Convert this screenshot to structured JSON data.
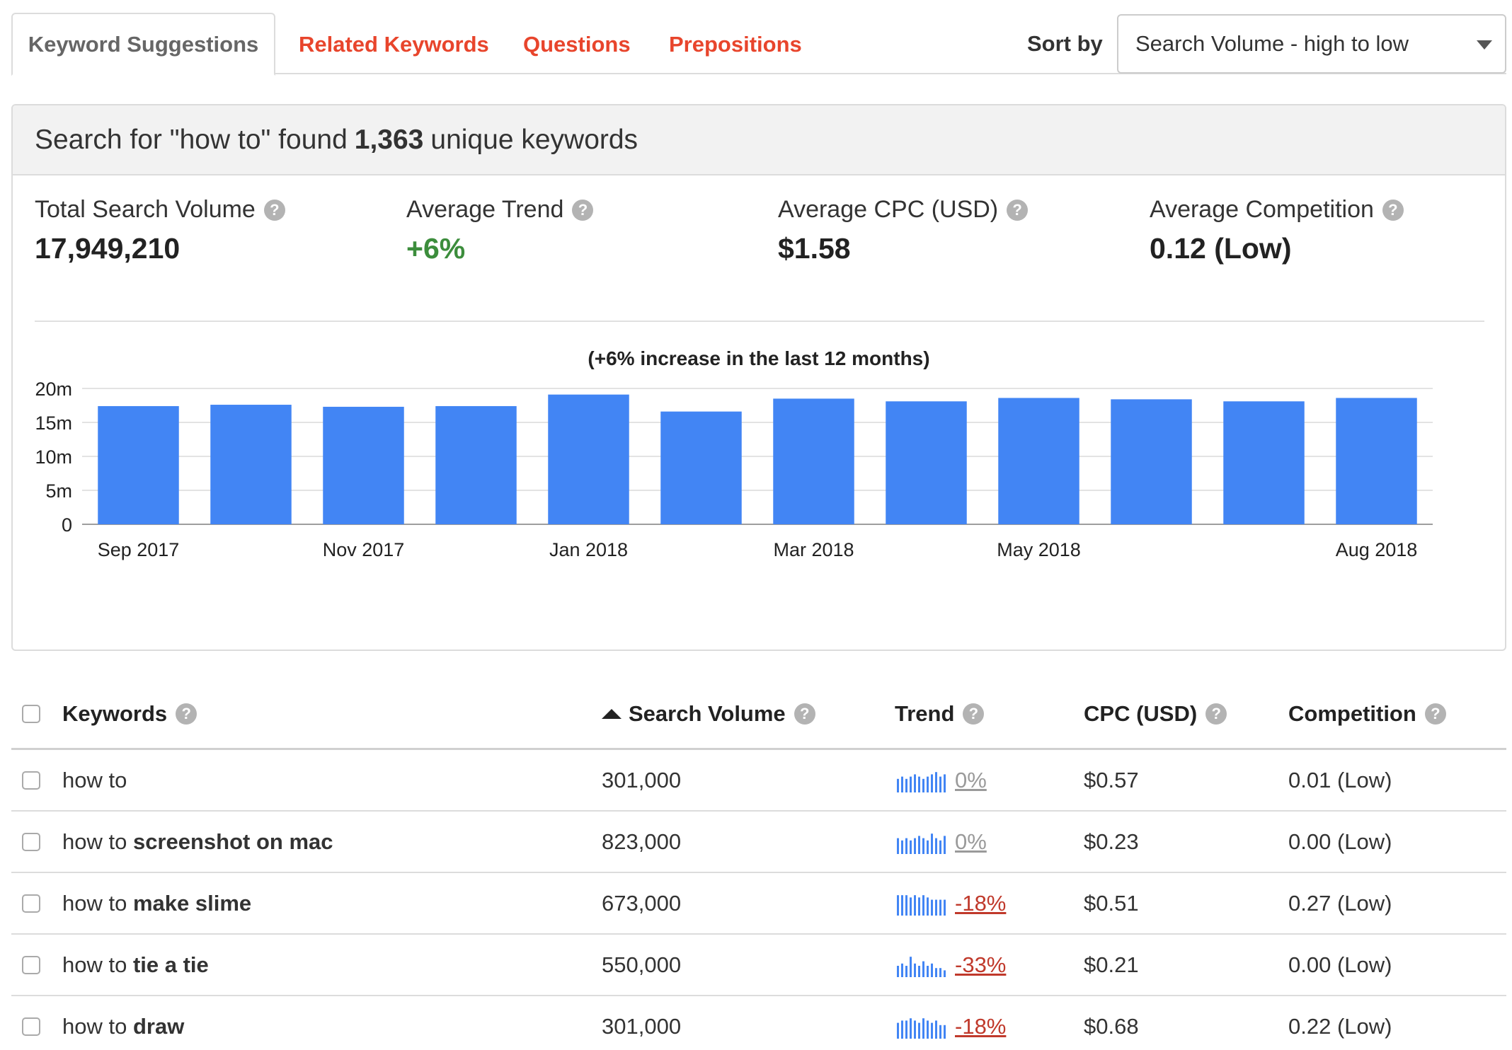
{
  "tabs": [
    {
      "label": "Keyword Suggestions",
      "active": true
    },
    {
      "label": "Related Keywords",
      "active": false
    },
    {
      "label": "Questions",
      "active": false
    },
    {
      "label": "Prepositions",
      "active": false
    }
  ],
  "sort": {
    "label": "Sort by",
    "selected": "Search Volume - high to low"
  },
  "summary": {
    "prefix": "Search for \"how to\" found",
    "count": "1,363",
    "suffix": "unique keywords"
  },
  "stats": {
    "total_volume": {
      "label": "Total Search Volume",
      "value": "17,949,210"
    },
    "avg_trend": {
      "label": "Average Trend",
      "value": "+6%"
    },
    "avg_cpc": {
      "label": "Average CPC (USD)",
      "value": "$1.58"
    },
    "avg_competition": {
      "label": "Average Competition",
      "value": "0.12 (Low)"
    }
  },
  "help_glyph": "?",
  "colors": {
    "accent": "#e8452c",
    "bar": "#4285f4",
    "positive": "#3c8d3c",
    "negative": "#c0392b"
  },
  "chart_data": {
    "type": "bar",
    "title": "(+6% increase in the last 12 months)",
    "categories": [
      "Sep 2017",
      "Oct 2017",
      "Nov 2017",
      "Dec 2017",
      "Jan 2018",
      "Feb 2018",
      "Mar 2018",
      "Apr 2018",
      "May 2018",
      "Jun 2018",
      "Jul 2018",
      "Aug 2018"
    ],
    "values": [
      17.4,
      17.6,
      17.3,
      17.4,
      19.1,
      16.6,
      18.5,
      18.1,
      18.6,
      18.4,
      18.1,
      18.6
    ],
    "x_tick_labels": [
      "Sep 2017",
      "Nov 2017",
      "Jan 2018",
      "Mar 2018",
      "May 2018",
      "Aug 2018"
    ],
    "y_ticks": [
      0,
      5,
      10,
      15,
      20
    ],
    "y_tick_labels": [
      "0",
      "5m",
      "10m",
      "15m",
      "20m"
    ],
    "ylim": [
      0,
      20
    ],
    "unit": "millions",
    "grid": true,
    "legend": "none"
  },
  "table": {
    "headers": {
      "keywords": "Keywords",
      "volume": "Search Volume",
      "trend": "Trend",
      "cpc": "CPC (USD)",
      "competition": "Competition"
    },
    "rows": [
      {
        "stem": "how to",
        "rest": "",
        "volume": "301,000",
        "trend": "0%",
        "trend_dir": "neutral",
        "spark": [
          6,
          7,
          6,
          7,
          8,
          7,
          6,
          7,
          8,
          9,
          7,
          8
        ],
        "cpc": "$0.57",
        "competition": "0.01 (Low)"
      },
      {
        "stem": "how to ",
        "rest": "screenshot on mac",
        "volume": "823,000",
        "trend": "0%",
        "trend_dir": "neutral",
        "spark": [
          7,
          6,
          7,
          6,
          7,
          8,
          7,
          6,
          9,
          7,
          6,
          8
        ],
        "cpc": "$0.23",
        "competition": "0.00 (Low)"
      },
      {
        "stem": "how to ",
        "rest": "make slime",
        "volume": "673,000",
        "trend": "-18%",
        "trend_dir": "negative",
        "spark": [
          9,
          9,
          9,
          8,
          9,
          8,
          9,
          8,
          7,
          7,
          7,
          7
        ],
        "cpc": "$0.51",
        "competition": "0.27 (Low)"
      },
      {
        "stem": "how to ",
        "rest": "tie a tie",
        "volume": "550,000",
        "trend": "-33%",
        "trend_dir": "negative",
        "spark": [
          5,
          6,
          5,
          9,
          6,
          5,
          7,
          5,
          6,
          4,
          4,
          3
        ],
        "cpc": "$0.21",
        "competition": "0.00 (Low)"
      },
      {
        "stem": "how to ",
        "rest": "draw",
        "volume": "301,000",
        "trend": "-18%",
        "trend_dir": "negative",
        "spark": [
          7,
          8,
          8,
          9,
          8,
          7,
          9,
          8,
          7,
          8,
          6,
          6
        ],
        "cpc": "$0.68",
        "competition": "0.22 (Low)"
      }
    ]
  }
}
